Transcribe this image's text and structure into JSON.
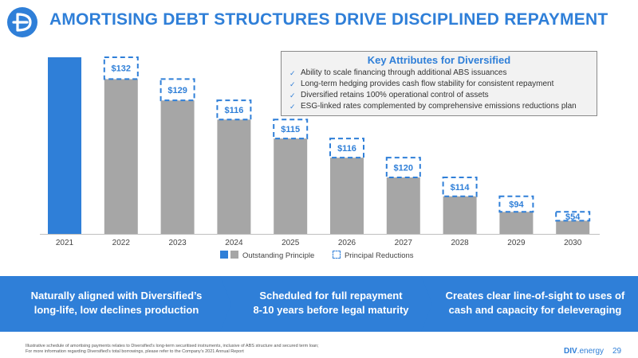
{
  "header": {
    "title": "AMORTISING DEBT STRUCTURES DRIVE DISCIPLINED REPAYMENT",
    "logo_icon": "diversified-logo-icon"
  },
  "colors": {
    "accent": "#2f7fd8",
    "outstanding": "#a6a6a6",
    "banner": "#2f7fd8"
  },
  "attributes": {
    "title": "Key Attributes for Diversified",
    "items": [
      "Ability to scale financing through additional ABS issuances",
      "Long-term hedging provides cash flow stability for consistent repayment",
      "Diversified retains 100% operational control of assets",
      "ESG-linked rates complemented by comprehensive emissions reductions plan"
    ]
  },
  "chart_data": {
    "type": "bar",
    "categories": [
      "2021",
      "2022",
      "2023",
      "2024",
      "2025",
      "2026",
      "2027",
      "2028",
      "2029",
      "2030"
    ],
    "series": [
      {
        "name": "Outstanding Principle",
        "values": [
          1070,
          938,
          809,
          693,
          578,
          462,
          342,
          228,
          134,
          80
        ]
      },
      {
        "name": "Principal Reductions",
        "values": [
          null,
          132,
          129,
          116,
          115,
          116,
          120,
          114,
          94,
          54
        ]
      }
    ],
    "data_labels": [
      "",
      "$132",
      "$129",
      "$116",
      "$115",
      "$116",
      "$120",
      "$114",
      "$94",
      "$54"
    ],
    "ylim": [
      0,
      1070
    ],
    "grid": false,
    "legend_position": "bottom"
  },
  "legend": {
    "outstanding_label": "Outstanding Principle",
    "reductions_label": "Principal Reductions"
  },
  "banner": {
    "items": [
      {
        "line1": "Naturally aligned with Diversified’s",
        "line2": "long-life, low declines production"
      },
      {
        "line1": "Scheduled for full repayment",
        "line2": "8-10 years before legal maturity"
      },
      {
        "line1": "Creates clear line-of-sight to uses of",
        "line2": "cash and capacity for deleveraging"
      }
    ]
  },
  "footer": {
    "footnote_line1": "Illustrative schedule of amortising payments relates to Diversified’s long-term securitised instruments, inclusive of ABS structure and secured term loan;",
    "footnote_line2": "For more information regarding Diversified’s total borrowings, please refer to the Company’s 2021 Annual Report",
    "brand_main": "DIV",
    "brand_suffix": ".energy",
    "page_number": "29"
  }
}
